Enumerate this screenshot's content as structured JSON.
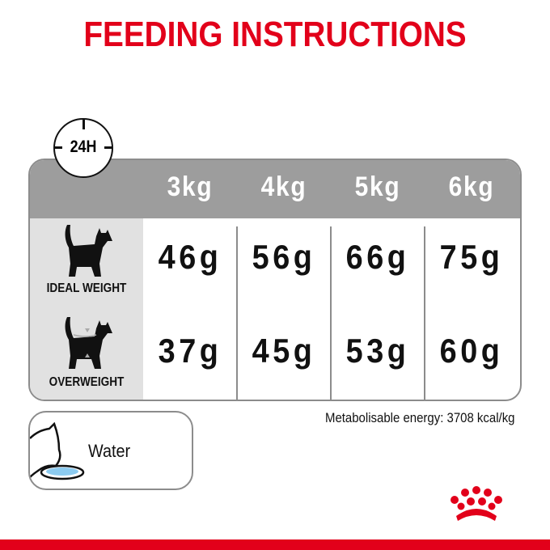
{
  "title": "FEEDING INSTRUCTIONS",
  "clock_label": "24H",
  "table": {
    "columns": [
      "3kg",
      "4kg",
      "5kg",
      "6kg"
    ],
    "rows": [
      {
        "label": "IDEAL WEIGHT",
        "icon": "cat-ideal-weight-icon",
        "values": [
          "46g",
          "56g",
          "66g",
          "75g"
        ]
      },
      {
        "label": "OVERWEIGHT",
        "icon": "cat-overweight-icon",
        "values": [
          "37g",
          "45g",
          "53g",
          "60g"
        ]
      }
    ]
  },
  "water_label": "Water",
  "energy_text": "Metabolisable energy: 3708 kcal/kg",
  "logo": "royal-canin-crown",
  "colors": {
    "brand_red": "#e2001a",
    "header_gray": "#9d9d9d",
    "label_gray": "#e1e1e1",
    "water_blue": "#8ccbf0"
  }
}
